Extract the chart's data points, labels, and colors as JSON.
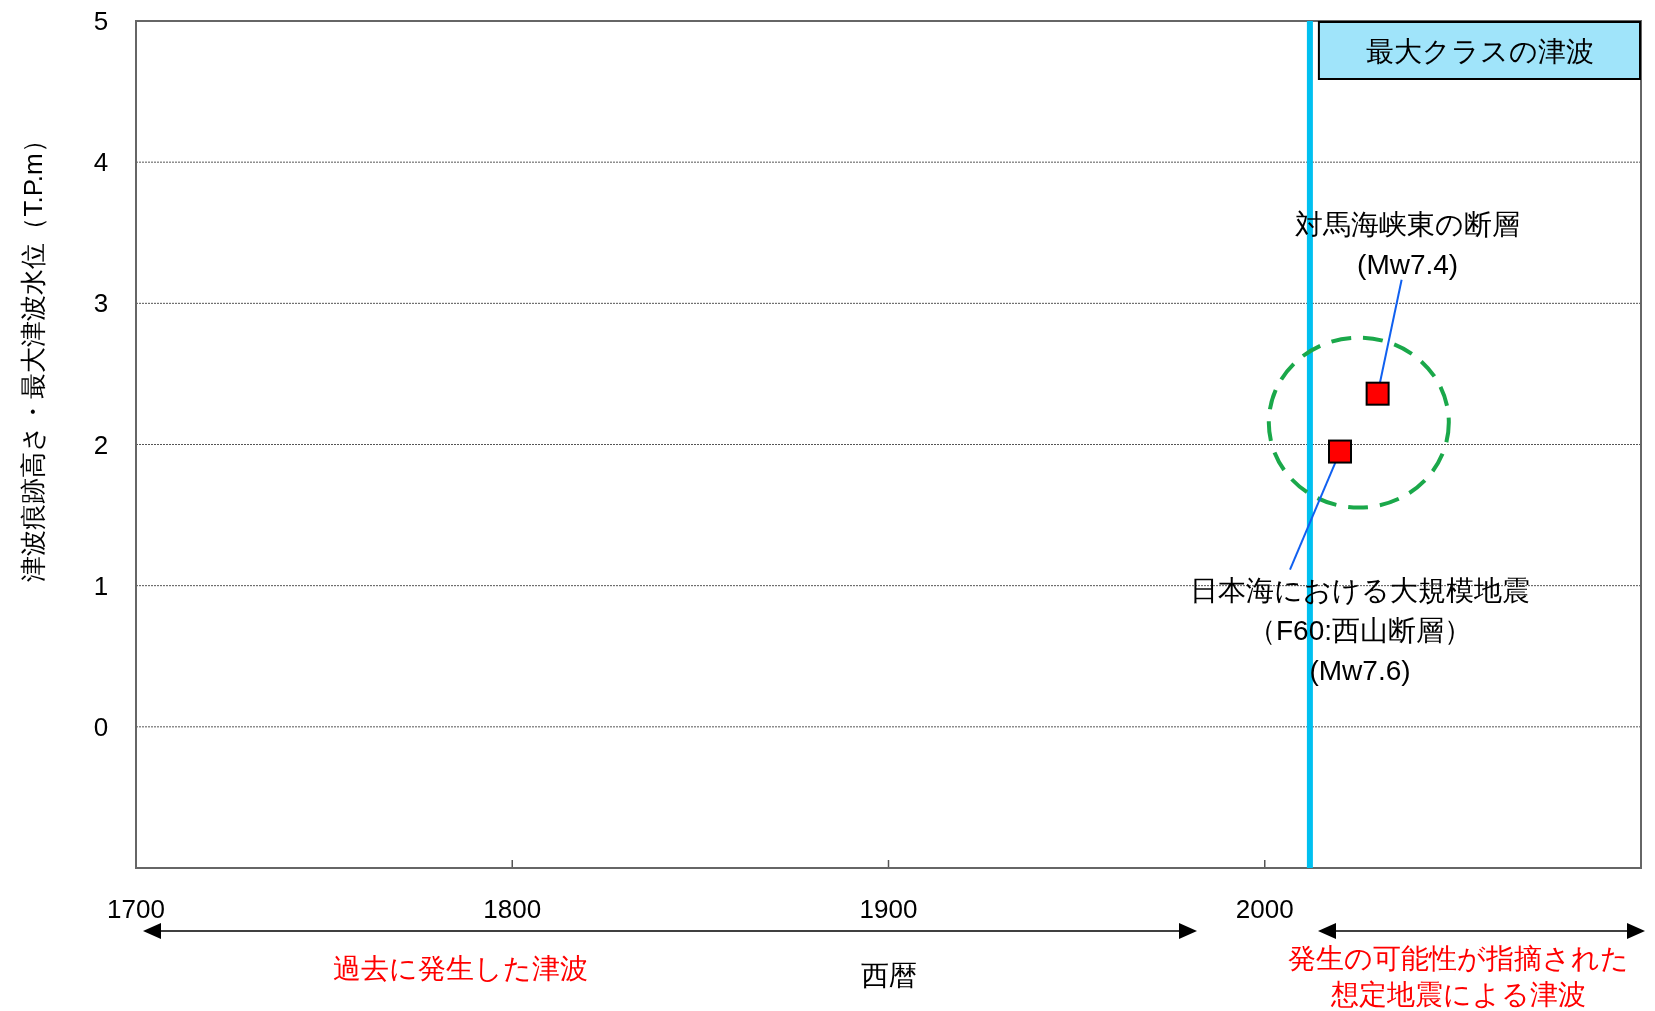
{
  "chart_data": {
    "type": "scatter",
    "xlabel": "西暦",
    "ylabel": "津波痕跡高さ・最大津波水位（T.P.m）",
    "xlim": [
      1700,
      2100
    ],
    "xticks": [
      1700,
      1800,
      1900,
      2000
    ],
    "ylim": [
      -1,
      5
    ],
    "yticks": [
      0,
      1,
      2,
      3,
      4,
      5
    ],
    "grid": "y",
    "marker": "square",
    "series": [
      {
        "color": "#ff0000",
        "x": [
          2020,
          2030
        ],
        "values": [
          1.95,
          2.36
        ]
      }
    ],
    "ref_lines": [
      {
        "axis": "x",
        "value": 2012,
        "label": "最大クラスの津波",
        "color": "#00c0f0"
      }
    ],
    "annotations": [
      {
        "text": "日本海における大規模地震（F60:西山断層）(Mw7.6)",
        "x": 2020,
        "y": 1.95
      },
      {
        "text": "対馬海峡東の断層(Mw7.4)",
        "x": 2030,
        "y": 2.36
      },
      "過去に発生した津波",
      "発生の可能性が指摘された想定地震による津波"
    ]
  }
}
